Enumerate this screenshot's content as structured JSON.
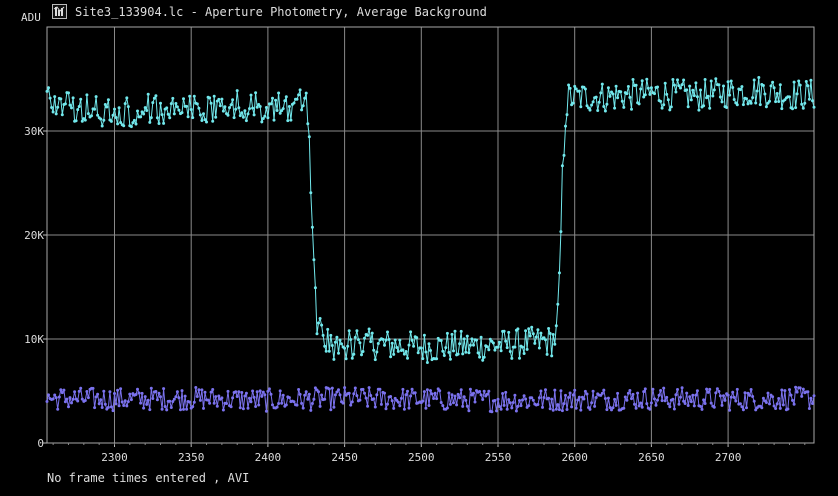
{
  "window": {
    "title": "Site3_133904.lc - Aperture Photometry, Average Background",
    "icon": "light-curve-app-icon"
  },
  "footer": {
    "status": "No frame times entered , AVI"
  },
  "chart_data": {
    "type": "line",
    "title": "Site3_133904.lc - Aperture Photometry, Average Background",
    "ylabel": "ADU",
    "xlabel": "",
    "xlim": [
      2256,
      2756
    ],
    "ylim": [
      0,
      40000
    ],
    "x_ticks": [
      2300,
      2350,
      2400,
      2450,
      2500,
      2550,
      2600,
      2650,
      2700
    ],
    "x_tick_labels": [
      "2300",
      "2350",
      "2400",
      "2450",
      "2500",
      "2550",
      "2600",
      "2650",
      "2700"
    ],
    "y_ticks": [
      0,
      10000,
      20000,
      30000
    ],
    "y_tick_labels": [
      "0",
      "10K",
      "20K",
      "30K"
    ],
    "grid": true,
    "legend": "none",
    "series": [
      {
        "color": "#72e8ec",
        "sampled_points": [
          [
            2256,
            33000
          ],
          [
            2280,
            32200
          ],
          [
            2300,
            31700
          ],
          [
            2320,
            32100
          ],
          [
            2340,
            32300
          ],
          [
            2360,
            32000
          ],
          [
            2380,
            32400
          ],
          [
            2400,
            32200
          ],
          [
            2420,
            32600
          ],
          [
            2426,
            32100
          ],
          [
            2428,
            24000
          ],
          [
            2430,
            17500
          ],
          [
            2432,
            11800
          ],
          [
            2436,
            10300
          ],
          [
            2445,
            9300
          ],
          [
            2470,
            9500
          ],
          [
            2500,
            9200
          ],
          [
            2525,
            9300
          ],
          [
            2550,
            9400
          ],
          [
            2585,
            9800
          ],
          [
            2588,
            10300
          ],
          [
            2590,
            15000
          ],
          [
            2592,
            25500
          ],
          [
            2594,
            31600
          ],
          [
            2596,
            33200
          ],
          [
            2620,
            33300
          ],
          [
            2650,
            33600
          ],
          [
            2680,
            33400
          ],
          [
            2700,
            33700
          ],
          [
            2720,
            33900
          ],
          [
            2740,
            33500
          ],
          [
            2756,
            33500
          ]
        ]
      },
      {
        "color": "#7b72ee",
        "sampled_points": [
          [
            2256,
            4300
          ],
          [
            2300,
            4200
          ],
          [
            2350,
            4300
          ],
          [
            2400,
            4100
          ],
          [
            2450,
            4300
          ],
          [
            2500,
            4200
          ],
          [
            2550,
            4100
          ],
          [
            2600,
            4200
          ],
          [
            2650,
            4300
          ],
          [
            2700,
            4200
          ],
          [
            2756,
            4300
          ]
        ]
      }
    ]
  }
}
